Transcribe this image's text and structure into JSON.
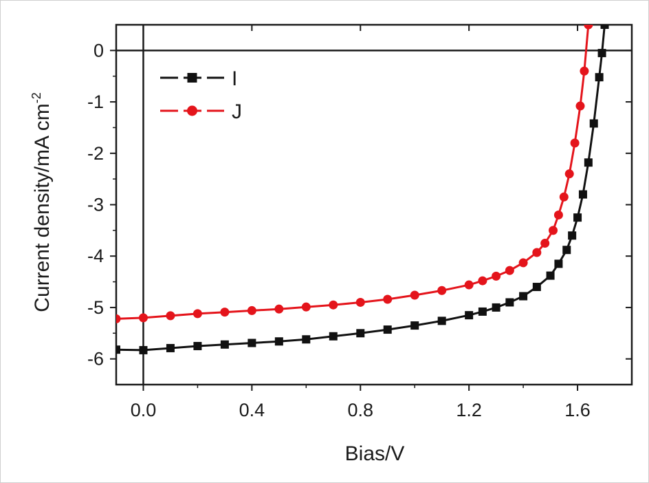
{
  "chart_data": {
    "type": "line",
    "title": "",
    "xlabel": "Bias/V",
    "ylabel_main": "Current density/mA cm",
    "ylabel_superscript": "-2",
    "xlim": [
      -0.1,
      1.8
    ],
    "ylim": [
      -6.5,
      0.5
    ],
    "x_ticks": [
      0.0,
      0.4,
      0.8,
      1.2,
      1.6
    ],
    "x_tick_labels": [
      "0.0",
      "0.4",
      "0.8",
      "1.2",
      "1.6"
    ],
    "y_ticks": [
      0,
      -1,
      -2,
      -3,
      -4,
      -5,
      -6
    ],
    "y_tick_labels": [
      "0",
      "-1",
      "-2",
      "-3",
      "-4",
      "-5",
      "-6"
    ],
    "grid": false,
    "legend_position": "top-left",
    "zero_lines": true,
    "series": [
      {
        "name": "I",
        "color": "#111111",
        "marker": "square",
        "x": [
          -0.1,
          0.0,
          0.1,
          0.2,
          0.3,
          0.4,
          0.5,
          0.6,
          0.7,
          0.8,
          0.9,
          1.0,
          1.1,
          1.2,
          1.25,
          1.3,
          1.35,
          1.4,
          1.45,
          1.5,
          1.53,
          1.56,
          1.58,
          1.6,
          1.62,
          1.64,
          1.66,
          1.68,
          1.69,
          1.7
        ],
        "y": [
          -5.82,
          -5.83,
          -5.79,
          -5.75,
          -5.72,
          -5.69,
          -5.66,
          -5.62,
          -5.56,
          -5.5,
          -5.43,
          -5.35,
          -5.26,
          -5.15,
          -5.08,
          -5.0,
          -4.9,
          -4.78,
          -4.6,
          -4.38,
          -4.15,
          -3.88,
          -3.6,
          -3.25,
          -2.8,
          -2.18,
          -1.42,
          -0.52,
          -0.05,
          0.5
        ]
      },
      {
        "name": "J",
        "color": "#e4141b",
        "marker": "circle",
        "x": [
          -0.1,
          0.0,
          0.1,
          0.2,
          0.3,
          0.4,
          0.5,
          0.6,
          0.7,
          0.8,
          0.9,
          1.0,
          1.1,
          1.2,
          1.25,
          1.3,
          1.35,
          1.4,
          1.45,
          1.48,
          1.51,
          1.53,
          1.55,
          1.57,
          1.59,
          1.61,
          1.625,
          1.64
        ],
        "y": [
          -5.22,
          -5.2,
          -5.16,
          -5.12,
          -5.09,
          -5.06,
          -5.03,
          -4.99,
          -4.95,
          -4.9,
          -4.84,
          -4.76,
          -4.67,
          -4.56,
          -4.48,
          -4.39,
          -4.28,
          -4.13,
          -3.93,
          -3.75,
          -3.5,
          -3.2,
          -2.85,
          -2.4,
          -1.8,
          -1.08,
          -0.4,
          0.5
        ]
      }
    ]
  }
}
